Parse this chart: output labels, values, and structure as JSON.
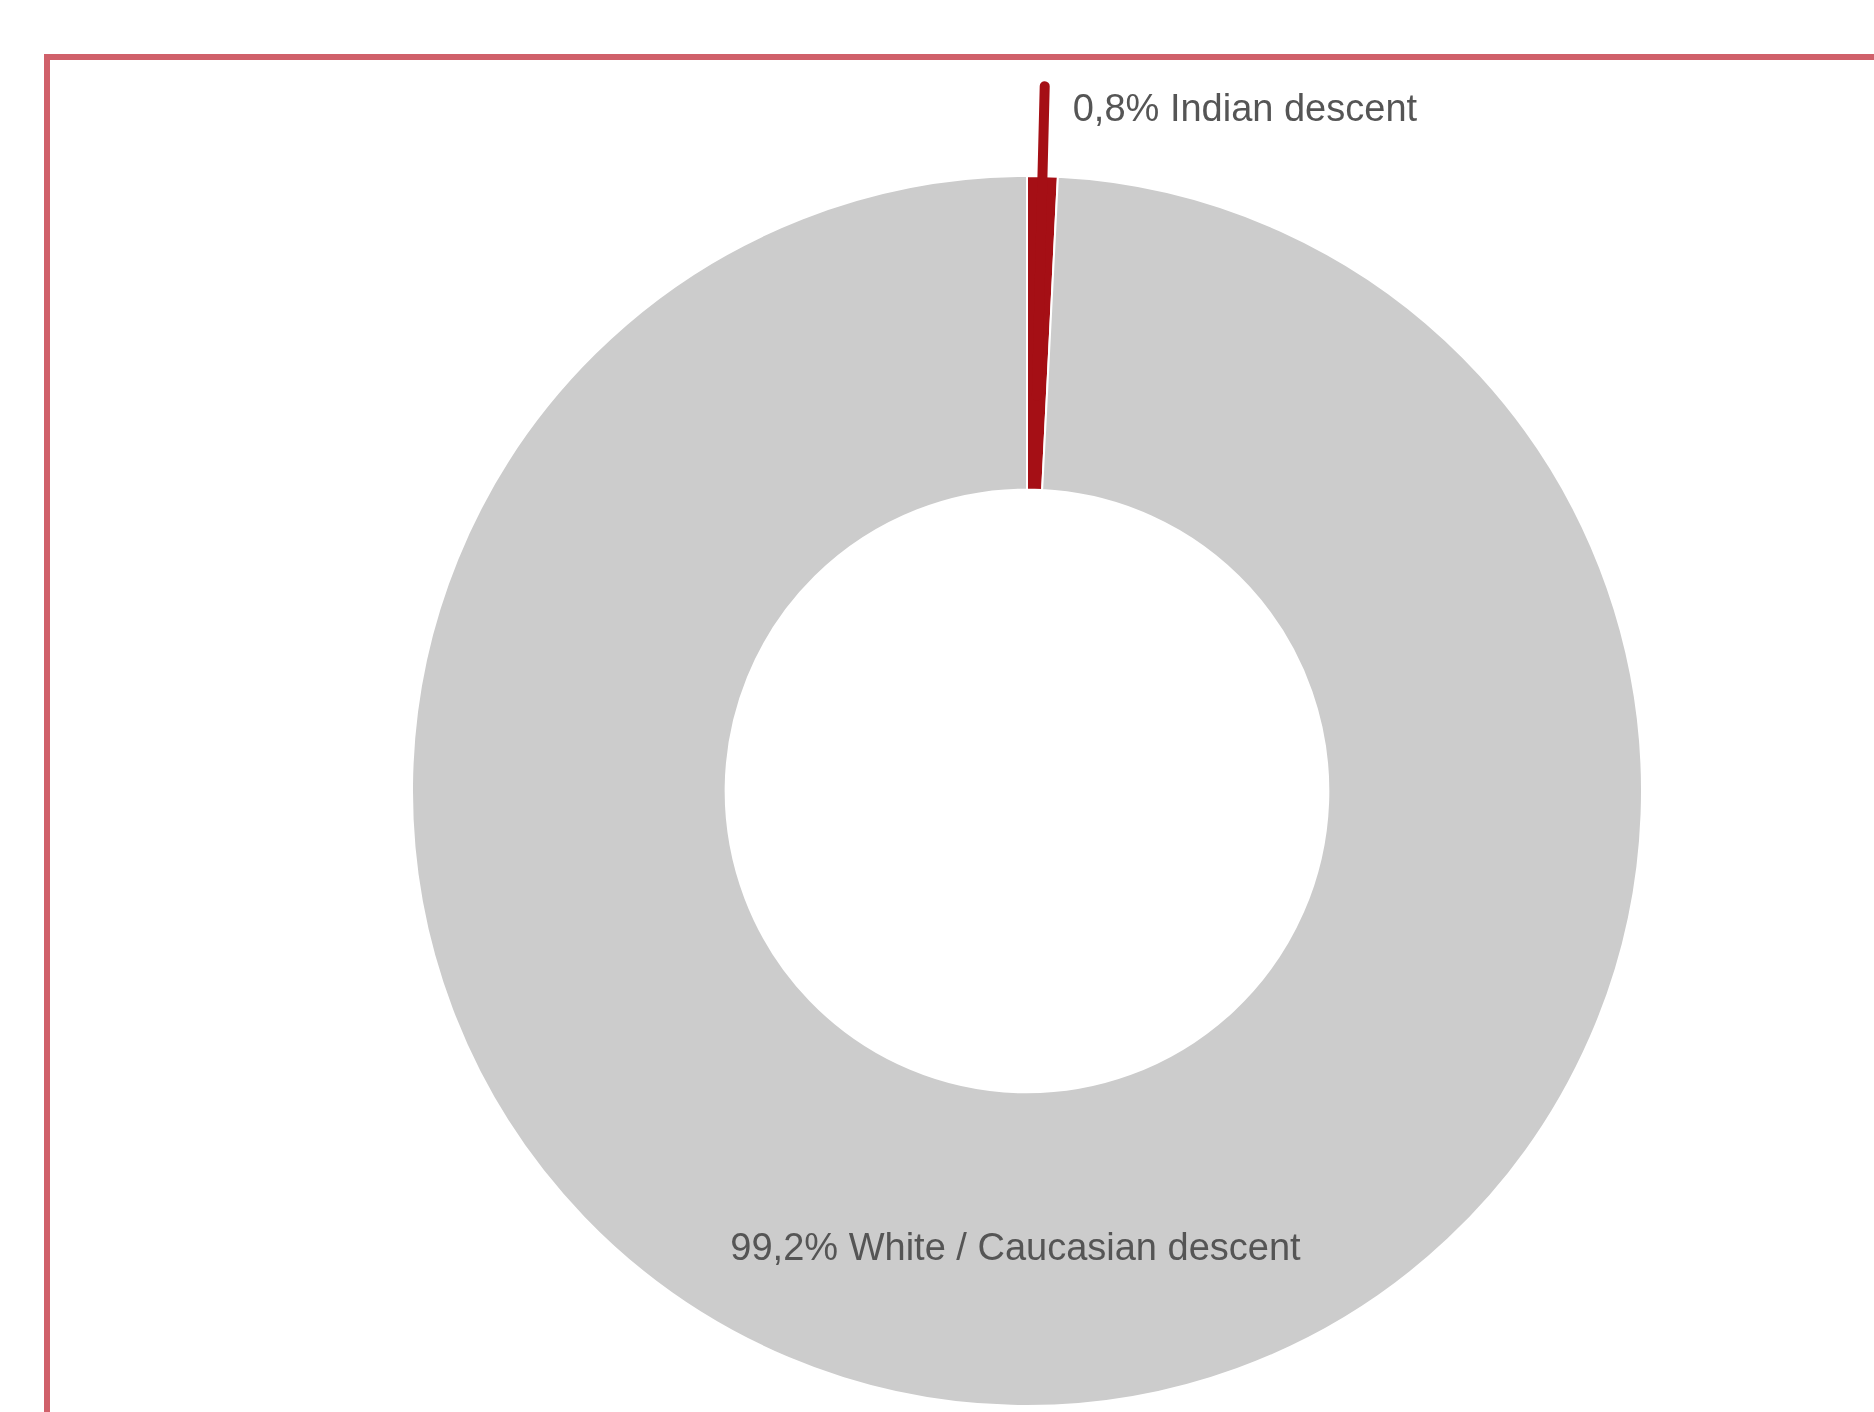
{
  "chart_data": {
    "type": "donut",
    "categories": [
      "Indian descent",
      "White / Caucasian descent"
    ],
    "values": [
      0.8,
      99.2
    ],
    "value_labels": [
      "0,8%",
      "99,2%"
    ],
    "colors": [
      "#a50f15",
      "#cccccc"
    ],
    "legend": false
  }
}
